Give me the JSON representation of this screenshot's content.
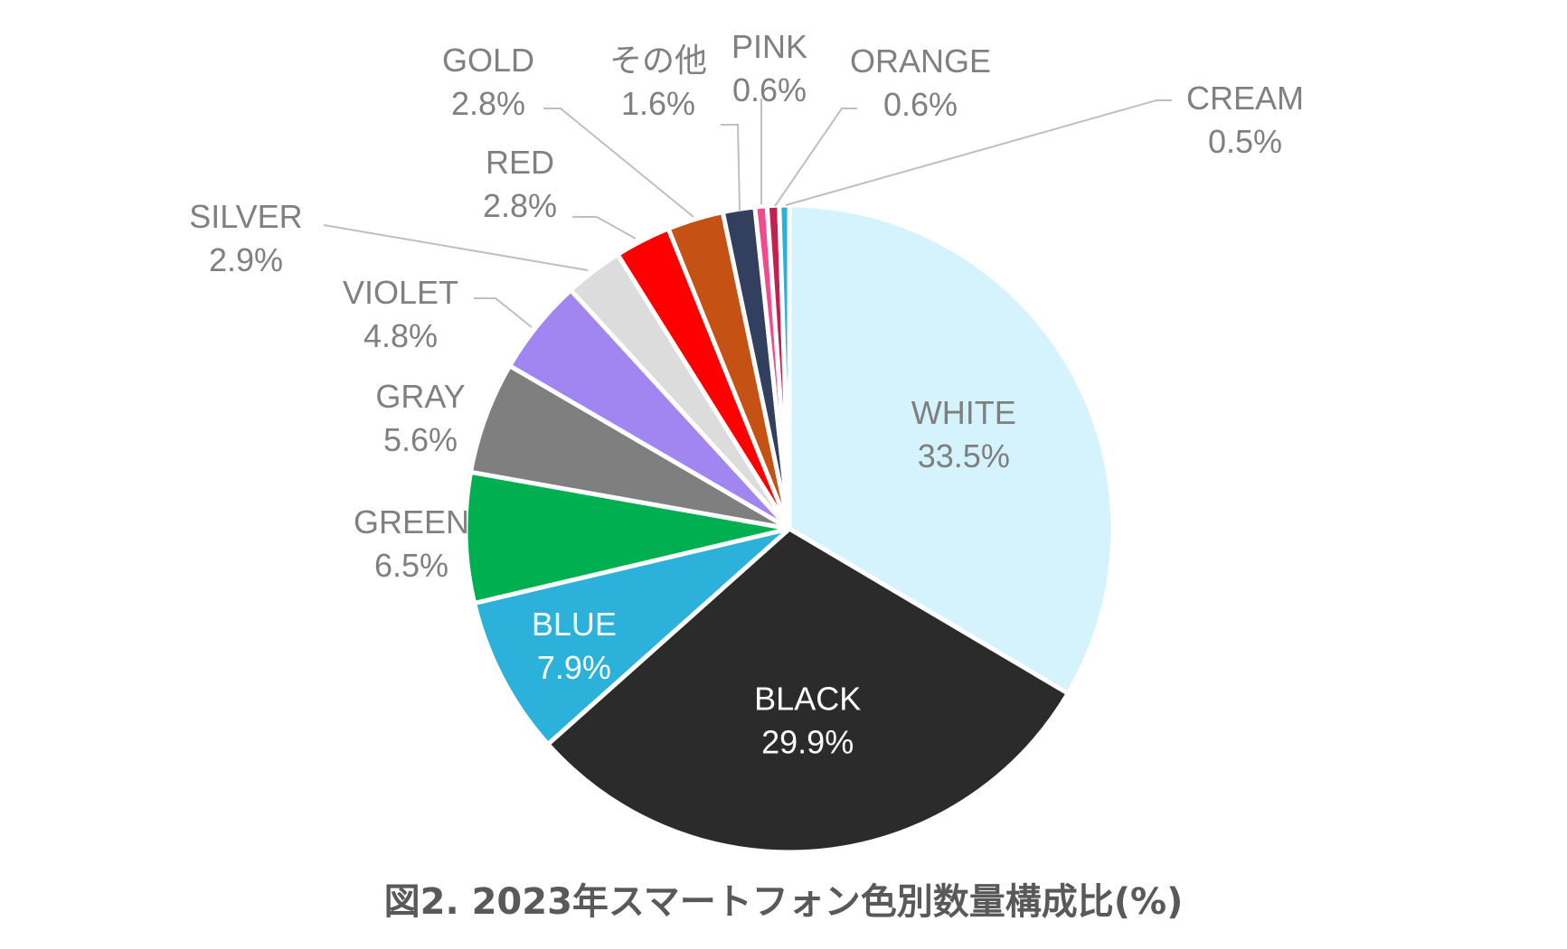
{
  "chart_data": {
    "type": "pie",
    "title": "図2. 2023年スマートフォン色別数量構成比(%)",
    "start_angle_deg": 0,
    "direction": "clockwise",
    "value_unit": "%",
    "slices": [
      {
        "label": "WHITE",
        "value": 33.5,
        "value_text": "33.5%",
        "color": "#D5F3FD",
        "label_color": "#7F7F7F"
      },
      {
        "label": "BLACK",
        "value": 29.9,
        "value_text": "29.9%",
        "color": "#2B2B2B",
        "label_color": "#FFFFFF"
      },
      {
        "label": "BLUE",
        "value": 7.9,
        "value_text": "7.9%",
        "color": "#2BB1DA",
        "label_color": "#FFFFFF"
      },
      {
        "label": "GREEN",
        "value": 6.5,
        "value_text": "6.5%",
        "color": "#00B050",
        "label_color": "#808080"
      },
      {
        "label": "GRAY",
        "value": 5.6,
        "value_text": "5.6%",
        "color": "#7F7F7F",
        "label_color": "#808080"
      },
      {
        "label": "VIOLET",
        "value": 4.8,
        "value_text": "4.8%",
        "color": "#A185F0",
        "label_color": "#808080"
      },
      {
        "label": "SILVER",
        "value": 2.9,
        "value_text": "2.9%",
        "color": "#DCDCDC",
        "label_color": "#808080"
      },
      {
        "label": "RED",
        "value": 2.8,
        "value_text": "2.8%",
        "color": "#FF0000",
        "label_color": "#808080"
      },
      {
        "label": "GOLD",
        "value": 2.8,
        "value_text": "2.8%",
        "color": "#C55114",
        "label_color": "#808080"
      },
      {
        "label": "その他",
        "value": 1.6,
        "value_text": "1.6%",
        "color": "#333F5F",
        "label_color": "#808080"
      },
      {
        "label": "PINK",
        "value": 0.6,
        "value_text": "0.6%",
        "color": "#F04B8C",
        "label_color": "#808080"
      },
      {
        "label": "ORANGE",
        "value": 0.6,
        "value_text": "0.6%",
        "color": "#C4204F",
        "label_color": "#808080"
      },
      {
        "label": "CREAM",
        "value": 0.5,
        "value_text": "0.5%",
        "color": "#2BB1DA",
        "label_color": "#808080"
      }
    ]
  }
}
